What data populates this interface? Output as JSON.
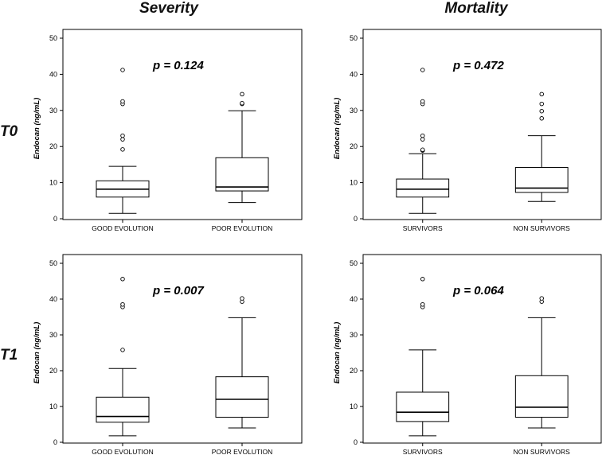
{
  "columns": [
    "Severity",
    "Mortality"
  ],
  "rows": [
    "T0",
    "T1"
  ],
  "chart_data": [
    {
      "type": "box",
      "column": "Severity",
      "row": "T0",
      "ylabel": "Endocan (ng/mL)",
      "ylim": [
        0,
        50
      ],
      "yticks": [
        0,
        10,
        20,
        30,
        40,
        50
      ],
      "annotation": "p = 0.124",
      "categories": [
        "GOOD EVOLUTION",
        "POOR EVOLUTION"
      ],
      "boxes": [
        {
          "min": 1.5,
          "q1": 6.0,
          "median": 8.2,
          "q3": 10.5,
          "max": 14.5,
          "outliers": [
            19.2,
            22.0,
            23.0,
            31.8,
            32.5,
            41.2
          ]
        },
        {
          "min": 4.5,
          "q1": 7.7,
          "median": 8.8,
          "q3": 16.9,
          "max": 29.9,
          "outliers": [
            31.8,
            32.0,
            34.5
          ]
        }
      ]
    },
    {
      "type": "box",
      "column": "Mortality",
      "row": "T0",
      "ylabel": "Endocan (ng/mL)",
      "ylim": [
        0,
        50
      ],
      "yticks": [
        0,
        10,
        20,
        30,
        40,
        50
      ],
      "annotation": "p = 0.472",
      "categories": [
        "SURVIVORS",
        "NON SURVIVORS"
      ],
      "boxes": [
        {
          "min": 1.5,
          "q1": 6.0,
          "median": 8.2,
          "q3": 11.0,
          "max": 18.0,
          "outliers": [
            18.9,
            19.1,
            22.0,
            23.0,
            31.8,
            32.5,
            41.2
          ]
        },
        {
          "min": 4.8,
          "q1": 7.3,
          "median": 8.5,
          "q3": 14.2,
          "max": 23.0,
          "outliers": [
            27.8,
            29.8,
            31.8,
            34.5
          ]
        }
      ]
    },
    {
      "type": "box",
      "column": "Severity",
      "row": "T1",
      "ylabel": "Endocan (ng/mL)",
      "ylim": [
        0,
        50
      ],
      "yticks": [
        0,
        10,
        20,
        30,
        40,
        50
      ],
      "annotation": "p = 0.007",
      "categories": [
        "GOOD EVOLUTION",
        "POOR EVOLUTION"
      ],
      "boxes": [
        {
          "min": 1.8,
          "q1": 5.6,
          "median": 7.2,
          "q3": 12.6,
          "max": 20.6,
          "outliers": [
            25.8,
            37.8,
            38.5,
            45.6
          ]
        },
        {
          "min": 4.0,
          "q1": 7.0,
          "median": 12.0,
          "q3": 18.3,
          "max": 34.8,
          "outliers": [
            39.3,
            40.2
          ]
        }
      ]
    },
    {
      "type": "box",
      "column": "Mortality",
      "row": "T1",
      "ylabel": "Endocan (ng/mL)",
      "ylim": [
        0,
        50
      ],
      "yticks": [
        0,
        10,
        20,
        30,
        40,
        50
      ],
      "annotation": "p = 0.064",
      "categories": [
        "SURVIVORS",
        "NON SURVIVORS"
      ],
      "boxes": [
        {
          "min": 1.8,
          "q1": 5.8,
          "median": 8.4,
          "q3": 14.0,
          "max": 25.8,
          "outliers": [
            37.8,
            38.5,
            45.6
          ]
        },
        {
          "min": 4.0,
          "q1": 7.0,
          "median": 9.8,
          "q3": 18.6,
          "max": 34.8,
          "outliers": [
            39.3,
            40.2
          ]
        }
      ]
    }
  ]
}
